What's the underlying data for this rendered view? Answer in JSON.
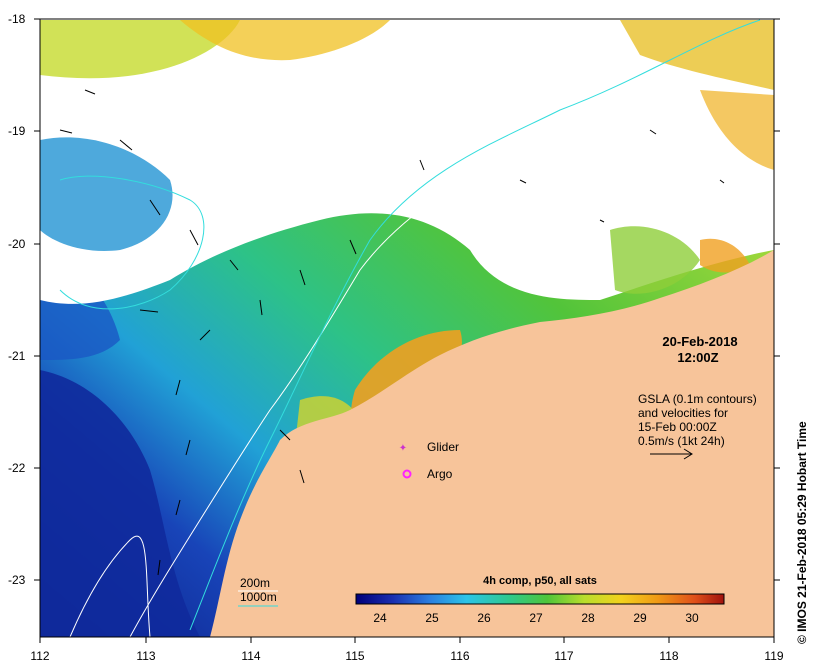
{
  "map": {
    "lon_ticks": [
      "112",
      "113",
      "114",
      "115",
      "116",
      "117",
      "118",
      "119"
    ],
    "lat_ticks": [
      "-18",
      "-19",
      "-20",
      "-21",
      "-22",
      "-23"
    ],
    "date": "20-Feb-2018",
    "time": "12:00Z",
    "gsla_note": [
      "GSLA (0.1m contours)",
      "and velocities for",
      "15-Feb 00:00Z",
      "0.5m/s (1kt 24h)"
    ],
    "markers": {
      "glider_label": "Glider",
      "argo_label": "Argo",
      "glider_color": "#cc33cc",
      "argo_color": "#ff22ff"
    },
    "bathymetry": {
      "label_200m": "200m",
      "label_1000m": "1000m",
      "color_200m": "#ffffff",
      "color_1000m": "#33dddd"
    },
    "colorbar": {
      "title": "4h comp, p50, all sats",
      "labels": [
        "24",
        "25",
        "26",
        "27",
        "28",
        "29",
        "30"
      ]
    },
    "credit": "© IMOS 21-Feb-2018 05:29 Hobart Time",
    "colors": {
      "land": "#f7c49a",
      "cloud": "#ffffff",
      "sst_cold": "#0a1f8c",
      "sst_mid": "#33bb33",
      "sst_warm": "#e88a1a"
    }
  }
}
